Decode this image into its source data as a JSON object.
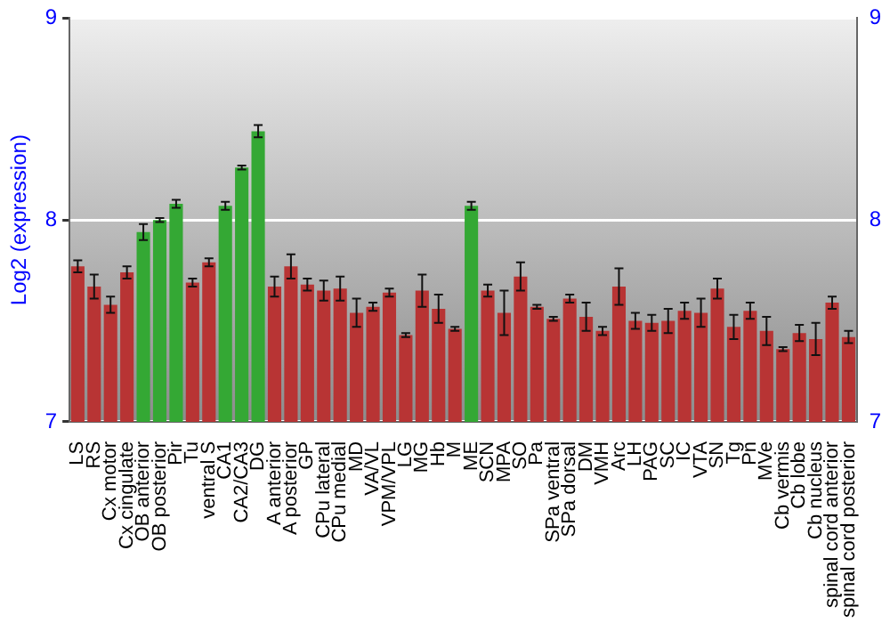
{
  "chart_data": {
    "type": "bar",
    "ylabel": "Log2 (expression)",
    "categories": [
      "LS",
      "RS",
      "Cx motor",
      "Cx cingulate",
      "OB anterior",
      "OB posterior",
      "Pir",
      "Tu",
      "ventral S",
      "CA1",
      "CA2/CA3",
      "DG",
      "A anterior",
      "A posterior",
      "GP",
      "CPu lateral",
      "CPu medial",
      "MD",
      "VA/VL",
      "VPM/VPL",
      "LG",
      "MG",
      "Hb",
      "M",
      "ME",
      "SCN",
      "MPA",
      "SO",
      "Pa",
      "SPa ventral",
      "SPa dorsal",
      "DM",
      "VMH",
      "Arc",
      "LH",
      "PAG",
      "SC",
      "IC",
      "VTA",
      "SN",
      "Tg",
      "Pn",
      "MVe",
      "Cb vermis",
      "Cb lobe",
      "Cb nucleus",
      "spinal cord anterior",
      "spinal cord posterior"
    ],
    "values": [
      7.77,
      7.67,
      7.58,
      7.74,
      7.94,
      8.0,
      8.08,
      7.69,
      7.79,
      8.07,
      8.26,
      8.44,
      7.67,
      7.77,
      7.68,
      7.65,
      7.66,
      7.54,
      7.57,
      7.64,
      7.43,
      7.65,
      7.56,
      7.46,
      8.07,
      7.65,
      7.54,
      7.72,
      7.57,
      7.51,
      7.61,
      7.52,
      7.45,
      7.67,
      7.5,
      7.49,
      7.5,
      7.55,
      7.54,
      7.66,
      7.47,
      7.55,
      7.45,
      7.36,
      7.44,
      7.41,
      7.59,
      7.42
    ],
    "errors": [
      0.03,
      0.06,
      0.04,
      0.03,
      0.04,
      0.01,
      0.02,
      0.02,
      0.02,
      0.02,
      0.01,
      0.03,
      0.05,
      0.06,
      0.03,
      0.05,
      0.06,
      0.07,
      0.02,
      0.02,
      0.01,
      0.08,
      0.07,
      0.01,
      0.02,
      0.03,
      0.11,
      0.07,
      0.01,
      0.01,
      0.02,
      0.07,
      0.02,
      0.09,
      0.04,
      0.04,
      0.06,
      0.04,
      0.07,
      0.05,
      0.06,
      0.04,
      0.07,
      0.01,
      0.04,
      0.08,
      0.03,
      0.03
    ],
    "colors": [
      "#b83434",
      "#b83434",
      "#b83434",
      "#b83434",
      "#34a834",
      "#34a834",
      "#34a834",
      "#b83434",
      "#b83434",
      "#34a834",
      "#34a834",
      "#34a834",
      "#b83434",
      "#b83434",
      "#b83434",
      "#b83434",
      "#b83434",
      "#b83434",
      "#b83434",
      "#b83434",
      "#b83434",
      "#b83434",
      "#b83434",
      "#b83434",
      "#34a834",
      "#b83434",
      "#b83434",
      "#b83434",
      "#b83434",
      "#b83434",
      "#b83434",
      "#b83434",
      "#b83434",
      "#b83434",
      "#b83434",
      "#b83434",
      "#b83434",
      "#b83434",
      "#b83434",
      "#b83434",
      "#b83434",
      "#b83434",
      "#b83434",
      "#b83434",
      "#b83434",
      "#b83434",
      "#b83434",
      "#b83434"
    ],
    "ylim": [
      7,
      9
    ],
    "yticks": [
      7,
      8,
      9
    ],
    "y2lim": [
      7,
      9
    ],
    "y2ticks": [
      7,
      8,
      9
    ],
    "grid": "y"
  }
}
